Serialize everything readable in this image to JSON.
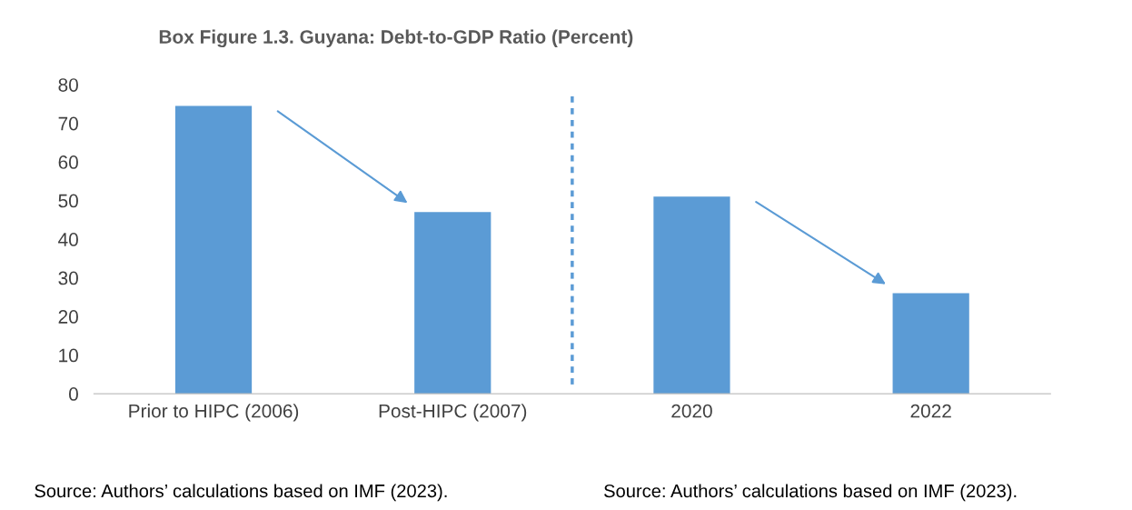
{
  "chart_data": {
    "type": "bar",
    "title": "Box Figure 1.3. Guyana: Debt-to-GDP Ratio (Percent)",
    "categories": [
      "Prior to HIPC (2006)",
      "Post-HIPC (2007)",
      "2020",
      "2022"
    ],
    "values": [
      74.5,
      47,
      51,
      26
    ],
    "color": "#5b9bd5",
    "ylim": [
      0,
      80
    ],
    "yticks": [
      0,
      10,
      20,
      30,
      40,
      50,
      60,
      70,
      80
    ],
    "grid": false,
    "annotations": [
      "Source: Authors’ calculations based on IMF (2023).",
      "Source: Authors’ calculations based on IMF (2023)."
    ]
  }
}
